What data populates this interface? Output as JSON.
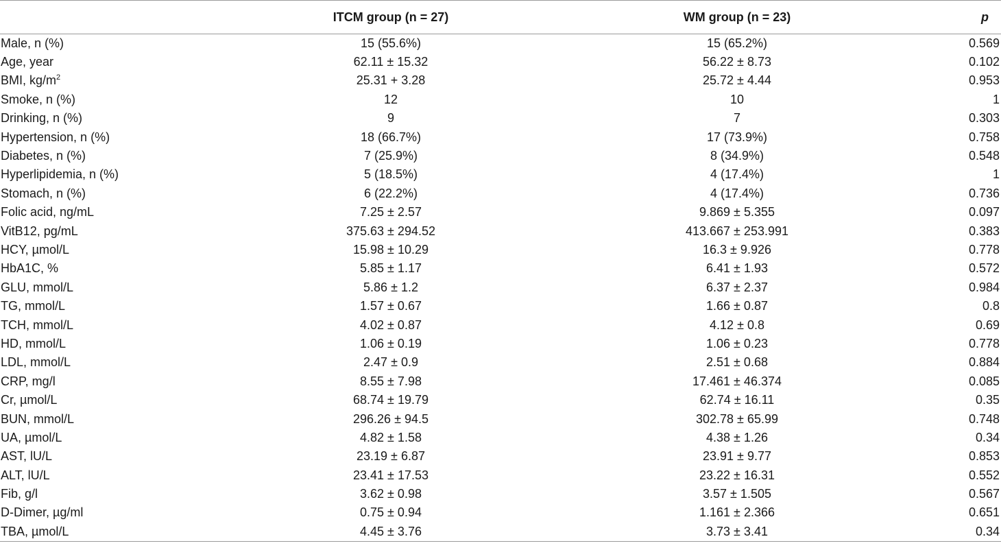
{
  "table": {
    "headers": {
      "label": "",
      "itcm": "ITCM group (n = 27)",
      "wm": "WM group (n = 23)",
      "p": "p"
    },
    "rows": [
      {
        "label": "Male, n (%)",
        "itcm": "15 (55.6%)",
        "wm": "15 (65.2%)",
        "p": "0.569"
      },
      {
        "label": "Age, year",
        "itcm": "62.11 ± 15.32",
        "wm": "56.22 ± 8.73",
        "p": "0.102"
      },
      {
        "label": "BMI, kg/m",
        "label_sup": "2",
        "itcm": "25.31 + 3.28",
        "wm": "25.72 ± 4.44",
        "p": "0.953"
      },
      {
        "label": "Smoke, n (%)",
        "itcm": "12",
        "wm": "10",
        "p": "1"
      },
      {
        "label": "Drinking, n (%)",
        "itcm": "9",
        "wm": "7",
        "p": "0.303"
      },
      {
        "label": "Hypertension, n (%)",
        "itcm": "18 (66.7%)",
        "wm": "17 (73.9%)",
        "p": "0.758"
      },
      {
        "label": "Diabetes, n (%)",
        "itcm": "7 (25.9%)",
        "wm": "8 (34.9%)",
        "p": "0.548"
      },
      {
        "label": "Hyperlipidemia, n (%)",
        "itcm": "5 (18.5%)",
        "wm": "4 (17.4%)",
        "p": "1"
      },
      {
        "label": "Stomach, n (%)",
        "itcm": "6 (22.2%)",
        "wm": "4 (17.4%)",
        "p": "0.736"
      },
      {
        "label": "Folic acid, ng/mL",
        "itcm": "7.25 ± 2.57",
        "wm": "9.869 ± 5.355",
        "p": "0.097"
      },
      {
        "label": "VitB12, pg/mL",
        "itcm": "375.63 ± 294.52",
        "wm": "413.667 ± 253.991",
        "p": "0.383"
      },
      {
        "label": "HCY, µmol/L",
        "itcm": "15.98 ± 10.29",
        "wm": "16.3 ± 9.926",
        "p": "0.778"
      },
      {
        "label": "HbA1C, %",
        "itcm": "5.85 ± 1.17",
        "wm": "6.41 ± 1.93",
        "p": "0.572"
      },
      {
        "label": "GLU, mmol/L",
        "itcm": "5.86 ± 1.2",
        "wm": "6.37 ± 2.37",
        "p": "0.984"
      },
      {
        "label": "TG, mmol/L",
        "itcm": "1.57 ± 0.67",
        "wm": "1.66 ± 0.87",
        "p": "0.8"
      },
      {
        "label": "TCH, mmol/L",
        "itcm": "4.02 ± 0.87",
        "wm": "4.12 ± 0.8",
        "p": "0.69"
      },
      {
        "label": "HD, mmol/L",
        "itcm": "1.06 ± 0.19",
        "wm": "1.06 ± 0.23",
        "p": "0.778"
      },
      {
        "label": "LDL, mmol/L",
        "itcm": "2.47 ± 0.9",
        "wm": "2.51 ± 0.68",
        "p": "0.884"
      },
      {
        "label": "CRP, mg/l",
        "itcm": "8.55 ± 7.98",
        "wm": "17.461 ± 46.374",
        "p": "0.085"
      },
      {
        "label": "Cr, µmol/L",
        "itcm": "68.74 ± 19.79",
        "wm": "62.74 ± 16.11",
        "p": "0.35"
      },
      {
        "label": "BUN, mmol/L",
        "itcm": "296.26 ± 94.5",
        "wm": "302.78 ± 65.99",
        "p": "0.748"
      },
      {
        "label": "UA, µmol/L",
        "itcm": "4.82 ± 1.58",
        "wm": "4.38 ± 1.26",
        "p": "0.34"
      },
      {
        "label": "AST, lU/L",
        "itcm": "23.19 ± 6.87",
        "wm": "23.91 ± 9.77",
        "p": "0.853"
      },
      {
        "label": "ALT, lU/L",
        "itcm": "23.41 ± 17.53",
        "wm": "23.22 ± 16.31",
        "p": "0.552"
      },
      {
        "label": "Fib, g/l",
        "itcm": "3.62 ± 0.98",
        "wm": "3.57 ± 1.505",
        "p": "0.567"
      },
      {
        "label": "D-Dimer, µg/ml",
        "itcm": "0.75 ± 0.94",
        "wm": "1.161 ± 2.366",
        "p": "0.651"
      },
      {
        "label": "TBA, µmol/L",
        "itcm": "4.45 ± 3.76",
        "wm": "3.73 ± 3.41",
        "p": "0.34"
      }
    ]
  }
}
